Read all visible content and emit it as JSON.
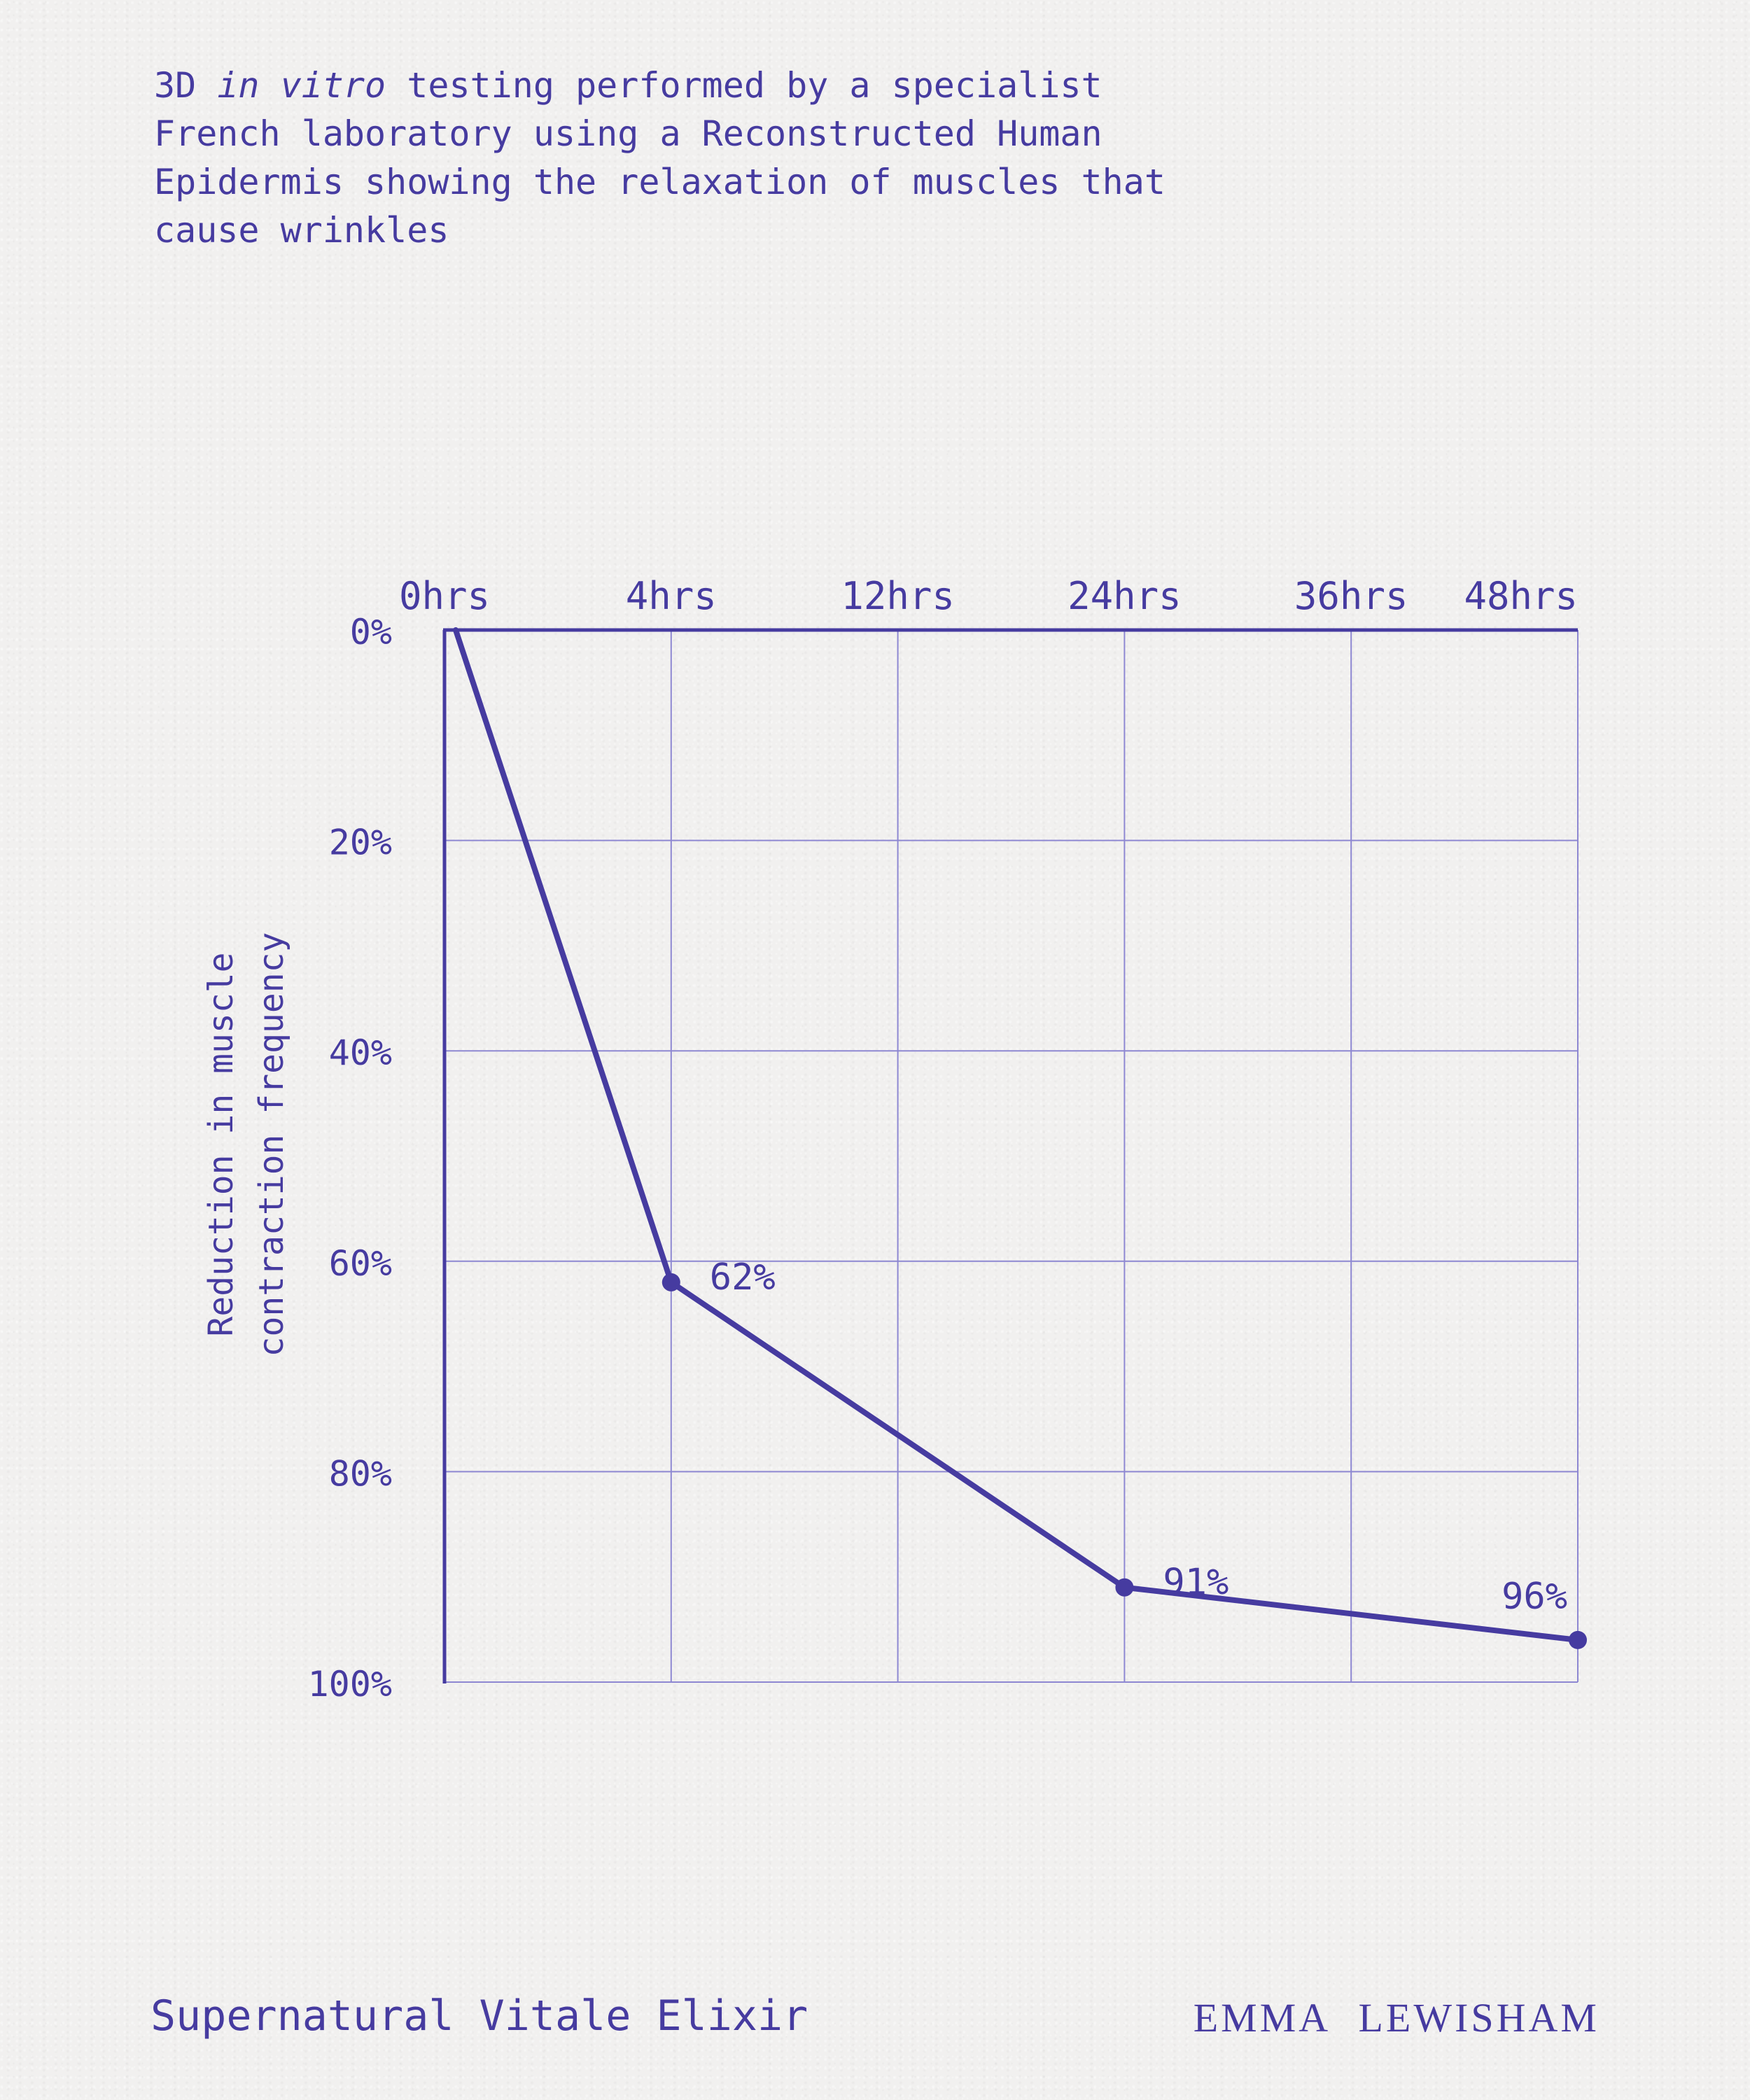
{
  "intro": {
    "prefix": "3D ",
    "emphasis": "in vitro",
    "suffix": " testing performed by a specialist French laboratory using a Reconstructed Human Epidermis showing the relaxation of muscles that cause wrinkles"
  },
  "chart_data": {
    "type": "line",
    "ylabel_lines": [
      "Reduction in muscle",
      "contraction frequency"
    ],
    "x_ticks": [
      "0hrs",
      "4hrs",
      "12hrs",
      "24hrs",
      "36hrs",
      "48hrs"
    ],
    "y_ticks": [
      "0%",
      "20%",
      "40%",
      "60%",
      "80%",
      "100%"
    ],
    "ylim": [
      0,
      100
    ],
    "y_axis_inverted": true,
    "x_axis_position": "top",
    "grid": true,
    "series": [
      {
        "points": [
          {
            "x": "0hrs",
            "y": 0,
            "label": ""
          },
          {
            "x": "4hrs",
            "y": 62,
            "label": "62%"
          },
          {
            "x": "24hrs",
            "y": 91,
            "label": "91%"
          },
          {
            "x": "48hrs",
            "y": 96,
            "label": "96%"
          }
        ]
      }
    ],
    "color": "#463ba0",
    "grid_color": "#8e88d2"
  },
  "footer": {
    "product": "Supernatural Vitale Elixir",
    "brand": "EMMA LEWISHAM"
  }
}
